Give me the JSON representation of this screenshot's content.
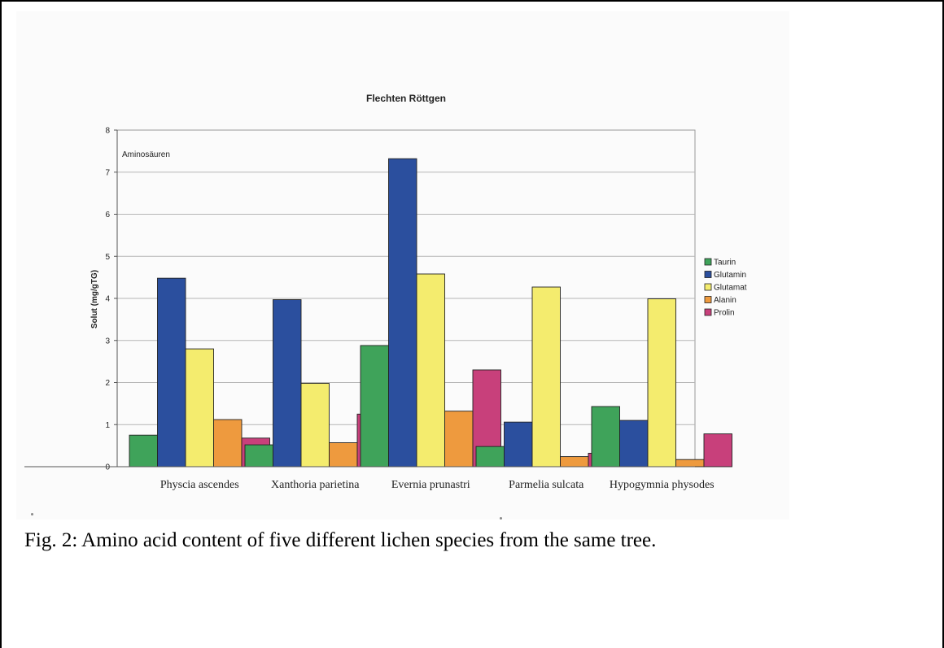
{
  "caption": "Fig. 2: Amino acid content of five different lichen species from the same tree.",
  "chart_data": {
    "type": "bar",
    "title": "Flechten Röttgen",
    "annotation": "Aminosäuren",
    "xlabel": "",
    "ylabel": "Solut (mg/gTG)",
    "ylim": [
      0,
      8
    ],
    "yticks": [
      0,
      1,
      2,
      3,
      4,
      5,
      6,
      7,
      8
    ],
    "grid": true,
    "legend_position": "right",
    "categories": [
      "Physcia ascendes",
      "Xanthoria parietina",
      "Evernia prunastri",
      "Parmelia sulcata",
      "Hypogymnia physodes"
    ],
    "series": [
      {
        "name": "Taurin",
        "color": "#3fa35a",
        "values": [
          0.75,
          0.52,
          2.88,
          0.48,
          1.43
        ]
      },
      {
        "name": "Glutamin",
        "color": "#2b4f9e",
        "values": [
          4.48,
          3.97,
          7.32,
          1.06,
          1.1
        ]
      },
      {
        "name": "Glutamat",
        "color": "#f4ec6e",
        "values": [
          2.8,
          1.98,
          4.58,
          4.27,
          3.99
        ]
      },
      {
        "name": "Alanin",
        "color": "#ee9a3e",
        "values": [
          1.12,
          0.57,
          1.32,
          0.24,
          0.17
        ]
      },
      {
        "name": "Prolin",
        "color": "#c8407b",
        "values": [
          0.68,
          1.25,
          2.3,
          0.32,
          0.78
        ]
      }
    ]
  }
}
